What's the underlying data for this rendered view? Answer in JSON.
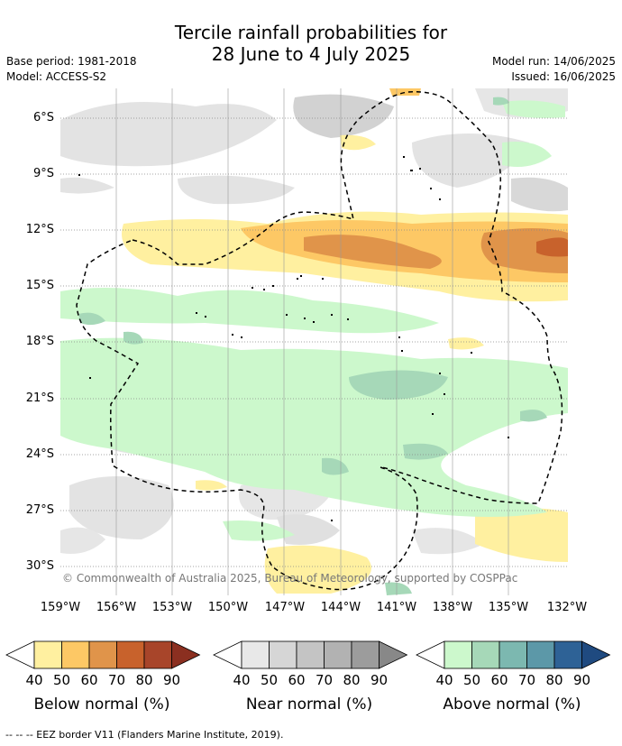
{
  "title_line1": "Tercile rainfall probabilities for",
  "title_line2": "28 June to 4 July 2025",
  "base_period": "Base period: 1981-2018",
  "model": "Model: ACCESS-S2",
  "model_run": "Model run: 14/06/2025",
  "issued": "Issued: 16/06/2025",
  "copyright": "© Commonwealth of Australia 2025, Bureau of Meteorology, supported by COSPPac",
  "footnote": "--  --  -- EEZ border V11 (Flanders Marine Institute, 2019).",
  "lat_labels": [
    "6°S",
    "9°S",
    "12°S",
    "15°S",
    "18°S",
    "21°S",
    "24°S",
    "27°S",
    "30°S"
  ],
  "lon_labels": [
    "159°W",
    "156°W",
    "153°W",
    "150°W",
    "147°W",
    "144°W",
    "141°W",
    "138°W",
    "135°W",
    "132°W"
  ],
  "legends": [
    {
      "title": "Below normal (%)",
      "ticks": [
        "40",
        "50",
        "60",
        "70",
        "80",
        "90"
      ],
      "colors": [
        "#fff0a0",
        "#fdc865",
        "#e0944a",
        "#c8622c",
        "#a8452a",
        "#8b2f20"
      ]
    },
    {
      "title": "Near normal (%)",
      "ticks": [
        "40",
        "50",
        "60",
        "70",
        "80",
        "90"
      ],
      "colors": [
        "#e8e8e8",
        "#d6d6d6",
        "#c4c4c4",
        "#b2b2b2",
        "#9c9c9c",
        "#888888"
      ]
    },
    {
      "title": "Above normal (%)",
      "ticks": [
        "40",
        "50",
        "60",
        "70",
        "80",
        "90"
      ],
      "colors": [
        "#ccf8cc",
        "#a6d8b8",
        "#7cb8b0",
        "#5c98a8",
        "#2e6296",
        "#1f4a80"
      ]
    }
  ],
  "colors": {
    "grid": "#888888",
    "eez": "#000000"
  }
}
